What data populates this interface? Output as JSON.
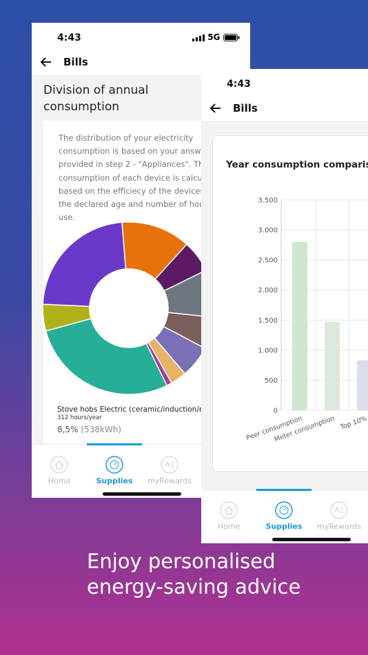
{
  "tagline": [
    "Enjoy personalised",
    "energy-saving advice"
  ],
  "back_screen": {
    "status_time": "4:43",
    "network": "5G",
    "header_title": "Bills",
    "section_title": [
      "Division of annual",
      "consumption"
    ],
    "description": "The distribution of your electricity consumption is based on your answers provided in step 2 - \"Appliances\". The consumption of each device is calculated based on the efficiecy of the devices as the declared age and number of hours use.",
    "chart_data": {
      "type": "pie",
      "donut": true,
      "values": [
        13,
        6,
        9,
        6,
        6,
        3,
        1,
        28,
        5,
        23
      ],
      "colors": [
        "#e8710a",
        "#5c1a63",
        "#6b777d",
        "#7b5f5c",
        "#7b70b5",
        "#e8b267",
        "#a0409c",
        "#27ae97",
        "#b2b01a",
        "#6a38c9"
      ]
    },
    "selected_item": {
      "name": "Stove hobs Electric (ceramic/induction/ena",
      "hours": "312 hours/year",
      "percent": "8,5%",
      "energy": "(538kWh)"
    },
    "tabs": [
      "Home",
      "Supplies",
      "myRewards"
    ]
  },
  "front_screen": {
    "status_time": "4:43",
    "header_title": "Bills",
    "chart_data": {
      "type": "bar",
      "title": "Year consumption comparis",
      "categories": [
        "Peer consumption",
        "Meter consumption",
        "Top 10%"
      ],
      "values": [
        2800,
        1470,
        830
      ],
      "colors": [
        "#cfe6cf",
        "#dde9dd",
        "#dcdcef"
      ],
      "ylim": [
        0,
        3500
      ],
      "yticks": [
        0,
        500,
        {
          "value": 1000,
          "label": "1.000"
        },
        {
          "value": 1500,
          "label": "1.500"
        },
        {
          "value": 2000,
          "label": "2.000"
        },
        {
          "value": 2500,
          "label": "2.500"
        },
        {
          "value": 3000,
          "label": "3.000"
        },
        {
          "value": 3500,
          "label": "3.500"
        }
      ],
      "grid": true
    },
    "tabs": [
      "Home",
      "Supplies",
      "myRewards"
    ]
  }
}
